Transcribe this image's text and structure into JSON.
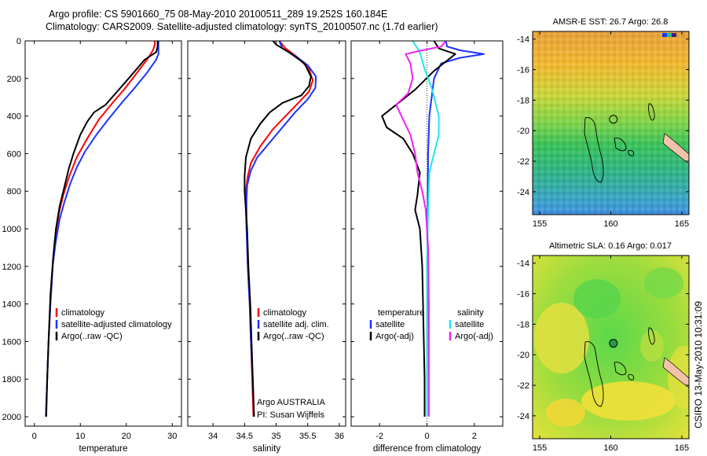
{
  "title": {
    "line1": "Argo profile: CS 5901660_75 08-May-2010 20100511_289 19.252S 160.184E",
    "line2": "Climatology: CARS2009. Satellite-adjusted climatology: synTS_20100507.nc (1.7d earlier)"
  },
  "credit": {
    "argo_line": "Argo AUSTRALIA",
    "pi_line": "PI: Susan Wijffels"
  },
  "side_stamp": "CSIRO 13-May-2010 10:31:09",
  "colors": {
    "black": "#000000",
    "red": "#ff0000",
    "blue": "#1a33ff",
    "cyan": "#22e5f0",
    "magenta": "#ee22ee"
  },
  "chart_data": [
    {
      "type": "line",
      "panel": "temperature",
      "xlabel": "temperature",
      "ylabel": "",
      "xlim": [
        -2,
        32
      ],
      "ylim": [
        2050,
        0
      ],
      "x_ticks": [
        0,
        10,
        20,
        30
      ],
      "y_ticks": [
        0,
        200,
        400,
        600,
        800,
        1000,
        1200,
        1400,
        1600,
        1800,
        2000
      ],
      "legend": [
        {
          "label": "climatology",
          "color": "#ff0000"
        },
        {
          "label": "satellite-adjusted climatology",
          "color": "#1a33ff"
        },
        {
          "label": "Argo(..raw -QC)",
          "color": "#000000"
        }
      ],
      "series": [
        {
          "name": "climatology",
          "color": "#ff0000",
          "points": [
            [
              26.2,
              0
            ],
            [
              26.2,
              20
            ],
            [
              25.8,
              50
            ],
            [
              24.5,
              100
            ],
            [
              22,
              180
            ],
            [
              19.5,
              260
            ],
            [
              17,
              330
            ],
            [
              14,
              420
            ],
            [
              11.5,
              520
            ],
            [
              9.2,
              620
            ],
            [
              7.6,
              720
            ],
            [
              6.3,
              820
            ],
            [
              5.5,
              900
            ],
            [
              4.5,
              1050
            ],
            [
              4.0,
              1200
            ],
            [
              3.5,
              1400
            ],
            [
              3.1,
              1600
            ],
            [
              2.8,
              1800
            ],
            [
              2.5,
              2000
            ]
          ]
        },
        {
          "name": "satellite-adjusted climatology",
          "color": "#1a33ff",
          "points": [
            [
              27.0,
              0
            ],
            [
              27.0,
              70
            ],
            [
              26.5,
              100
            ],
            [
              24.5,
              170
            ],
            [
              21.5,
              260
            ],
            [
              19,
              330
            ],
            [
              16,
              420
            ],
            [
              13.5,
              500
            ],
            [
              11,
              590
            ],
            [
              9.3,
              670
            ],
            [
              7.8,
              760
            ],
            [
              6.5,
              860
            ],
            [
              5.5,
              950
            ],
            [
              4.6,
              1080
            ],
            [
              4.0,
              1200
            ],
            [
              3.5,
              1400
            ],
            [
              3.1,
              1600
            ],
            [
              2.8,
              1800
            ],
            [
              2.5,
              2000
            ]
          ]
        },
        {
          "name": "Argo(..raw -QC)",
          "color": "#000000",
          "points": [
            [
              26.8,
              0
            ],
            [
              26.8,
              30
            ],
            [
              26.5,
              60
            ],
            [
              24,
              100
            ],
            [
              20.5,
              200
            ],
            [
              18,
              270
            ],
            [
              15.5,
              340
            ],
            [
              13,
              380
            ],
            [
              11.5,
              430
            ],
            [
              10,
              500
            ],
            [
              8.5,
              600
            ],
            [
              7.5,
              680
            ],
            [
              6.5,
              780
            ],
            [
              5.5,
              880
            ],
            [
              4.7,
              1000
            ],
            [
              4.1,
              1150
            ],
            [
              3.5,
              1350
            ],
            [
              3.1,
              1600
            ],
            [
              2.8,
              1800
            ],
            [
              2.6,
              2000
            ]
          ]
        }
      ]
    },
    {
      "type": "line",
      "panel": "salinity",
      "xlabel": "salinity",
      "ylabel": "",
      "xlim": [
        33.6,
        36.1
      ],
      "ylim": [
        2050,
        0
      ],
      "x_ticks": [
        34,
        34.5,
        35,
        35.5,
        36
      ],
      "legend": [
        {
          "label": "climatology",
          "color": "#ff0000"
        },
        {
          "label": "satellite adj. clim.",
          "color": "#1a33ff"
        },
        {
          "label": "Argo(..raw -QC)",
          "color": "#000000"
        }
      ],
      "series": [
        {
          "name": "climatology",
          "color": "#ff0000",
          "points": [
            [
              35.05,
              0
            ],
            [
              35.15,
              40
            ],
            [
              35.35,
              90
            ],
            [
              35.52,
              150
            ],
            [
              35.58,
              210
            ],
            [
              35.52,
              270
            ],
            [
              35.35,
              330
            ],
            [
              35.15,
              400
            ],
            [
              34.95,
              470
            ],
            [
              34.75,
              560
            ],
            [
              34.6,
              650
            ],
            [
              34.55,
              720
            ],
            [
              34.52,
              800
            ],
            [
              34.52,
              900
            ],
            [
              34.53,
              1000
            ],
            [
              34.55,
              1200
            ],
            [
              34.58,
              1400
            ],
            [
              34.6,
              1600
            ],
            [
              34.62,
              1800
            ],
            [
              34.64,
              2000
            ]
          ]
        },
        {
          "name": "satellite adj. clim.",
          "color": "#1a33ff",
          "points": [
            [
              35.05,
              0
            ],
            [
              35.1,
              40
            ],
            [
              35.3,
              80
            ],
            [
              35.5,
              130
            ],
            [
              35.63,
              190
            ],
            [
              35.62,
              250
            ],
            [
              35.5,
              310
            ],
            [
              35.3,
              380
            ],
            [
              35.1,
              460
            ],
            [
              34.9,
              540
            ],
            [
              34.7,
              620
            ],
            [
              34.6,
              690
            ],
            [
              34.54,
              770
            ],
            [
              34.53,
              850
            ],
            [
              34.53,
              1000
            ],
            [
              34.55,
              1200
            ],
            [
              34.58,
              1400
            ],
            [
              34.6,
              1600
            ],
            [
              34.63,
              1800
            ],
            [
              34.65,
              2000
            ]
          ]
        },
        {
          "name": "Argo(..raw -QC)",
          "color": "#000000",
          "points": [
            [
              34.95,
              0
            ],
            [
              35.0,
              20
            ],
            [
              35.2,
              60
            ],
            [
              35.45,
              120
            ],
            [
              35.55,
              190
            ],
            [
              35.52,
              240
            ],
            [
              35.4,
              290
            ],
            [
              35.1,
              330
            ],
            [
              34.9,
              380
            ],
            [
              34.75,
              440
            ],
            [
              34.6,
              520
            ],
            [
              34.52,
              620
            ],
            [
              34.5,
              720
            ],
            [
              34.5,
              800
            ],
            [
              34.52,
              900
            ],
            [
              34.54,
              1000
            ],
            [
              34.56,
              1200
            ],
            [
              34.59,
              1400
            ],
            [
              34.61,
              1600
            ],
            [
              34.63,
              1800
            ],
            [
              34.65,
              2000
            ]
          ]
        }
      ]
    },
    {
      "type": "line",
      "panel": "difference",
      "xlabel": "difference from climatology",
      "ylabel": "",
      "xlim": [
        -3.2,
        3.2
      ],
      "ylim": [
        2050,
        0
      ],
      "x_ticks": [
        -2,
        0,
        2
      ],
      "legend_left_title": "temperature",
      "legend_right_title": "salinity",
      "legend": [
        {
          "label": "satellite",
          "color": "#1a33ff",
          "column": "left"
        },
        {
          "label": "Argo(-adj)",
          "color": "#000000",
          "column": "left"
        },
        {
          "label": "satellite",
          "color": "#22e5f0",
          "column": "right"
        },
        {
          "label": "Argo(-adj)",
          "color": "#ee22ee",
          "column": "right"
        }
      ],
      "series": [
        {
          "name": "temperature satellite",
          "color": "#1a33ff",
          "points": [
            [
              0.8,
              0
            ],
            [
              0.85,
              30
            ],
            [
              1.4,
              50
            ],
            [
              2.4,
              70
            ],
            [
              1.4,
              90
            ],
            [
              0.6,
              120
            ],
            [
              0.3,
              200
            ],
            [
              0.2,
              300
            ],
            [
              0.1,
              400
            ],
            [
              0.05,
              600
            ],
            [
              0.02,
              1000
            ],
            [
              0,
              2000
            ]
          ]
        },
        {
          "name": "temperature Argo(-adj)",
          "color": "#000000",
          "points": [
            [
              0.3,
              0
            ],
            [
              0.5,
              40
            ],
            [
              1.2,
              70
            ],
            [
              0.9,
              100
            ],
            [
              0.3,
              160
            ],
            [
              -0.5,
              260
            ],
            [
              -1.3,
              340
            ],
            [
              -1.9,
              400
            ],
            [
              -1.7,
              460
            ],
            [
              -1.0,
              520
            ],
            [
              -0.6,
              600
            ],
            [
              -0.3,
              700
            ],
            [
              -0.4,
              820
            ],
            [
              -0.5,
              900
            ],
            [
              -0.3,
              1000
            ],
            [
              -0.2,
              1200
            ],
            [
              -0.15,
              1500
            ],
            [
              -0.1,
              1800
            ],
            [
              -0.1,
              2000
            ]
          ]
        },
        {
          "name": "salinity satellite",
          "color": "#22e5f0",
          "points": [
            [
              -0.6,
              0
            ],
            [
              -0.3,
              60
            ],
            [
              -0.1,
              150
            ],
            [
              0.2,
              250
            ],
            [
              0.5,
              400
            ],
            [
              0.5,
              500
            ],
            [
              0.3,
              600
            ],
            [
              0.1,
              700
            ],
            [
              0.05,
              900
            ],
            [
              0,
              1200
            ],
            [
              0,
              1600
            ],
            [
              0,
              2000
            ]
          ]
        },
        {
          "name": "salinity Argo(-adj)",
          "color": "#ee22ee",
          "points": [
            [
              0.8,
              0
            ],
            [
              0.6,
              30
            ],
            [
              -0.2,
              50
            ],
            [
              -0.9,
              70
            ],
            [
              -0.7,
              120
            ],
            [
              -0.6,
              200
            ],
            [
              -0.8,
              280
            ],
            [
              -1.3,
              340
            ],
            [
              -1.0,
              420
            ],
            [
              -0.7,
              500
            ],
            [
              -0.5,
              600
            ],
            [
              -0.4,
              700
            ],
            [
              -0.2,
              800
            ],
            [
              -0.05,
              900
            ],
            [
              0.05,
              1100
            ],
            [
              0.08,
              1400
            ],
            [
              0.08,
              1800
            ],
            [
              0.08,
              2000
            ]
          ]
        }
      ]
    },
    {
      "type": "heatmap",
      "panel": "sst_map",
      "title": "AMSR-E SST: 26.7 Argo: 26.8",
      "xlim": [
        154.5,
        165.5
      ],
      "ylim": [
        -25.5,
        -13.5
      ],
      "x_ticks": [
        155,
        160,
        165
      ],
      "y_ticks": [
        -14,
        -16,
        -18,
        -20,
        -22,
        -24
      ],
      "argo_position": [
        160.184,
        -19.252
      ],
      "argo_value": 26.8
    },
    {
      "type": "heatmap",
      "panel": "sla_map",
      "title": "Altimetric SLA: 0.16 Argo: 0.017",
      "xlim": [
        154.5,
        165.5
      ],
      "ylim": [
        -25.5,
        -13.5
      ],
      "x_ticks": [
        155,
        160,
        165
      ],
      "y_ticks": [
        -14,
        -16,
        -18,
        -20,
        -22,
        -24
      ],
      "argo_position": [
        160.184,
        -19.252
      ],
      "argo_value": 0.017
    }
  ]
}
